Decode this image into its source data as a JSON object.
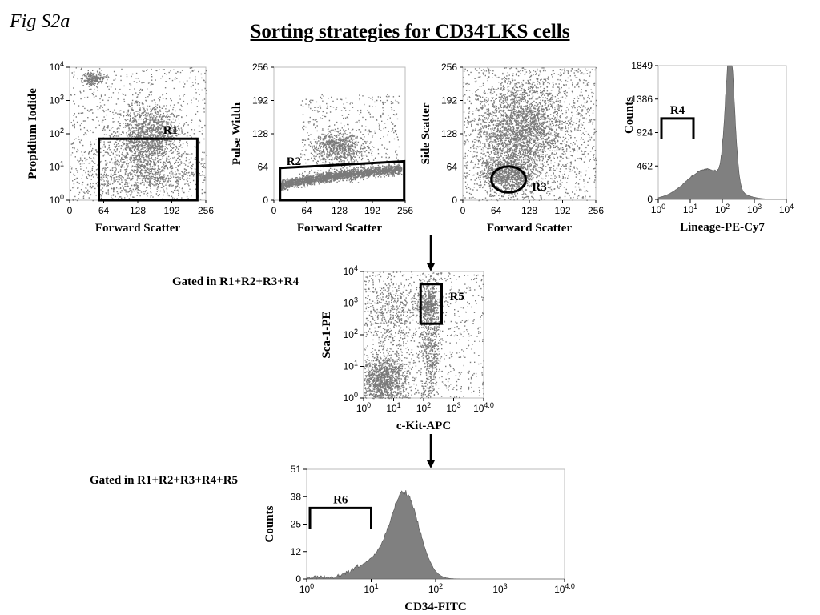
{
  "fig_label": "Fig S2a",
  "title_main": "Sorting strategies for CD34",
  "title_sup": "-",
  "title_rest": "LKS cells",
  "gate_notes": [
    "Gated in R1+R2+R3+R4",
    "Gated in R1+R2+R3+R4+R5"
  ],
  "chart_data": [
    {
      "type": "scatter",
      "id": "p1",
      "xlabel": "Forward Scatter",
      "ylabel": "Propidium Iodide",
      "x_ticks": [
        "0",
        "64",
        "128",
        "192",
        "256"
      ],
      "y_ticks": [
        "10^0",
        "10^1",
        "10^2",
        "10^3",
        "10^4"
      ],
      "xlim": [
        0,
        256
      ],
      "ylim_log10": [
        0,
        4
      ],
      "gate": {
        "name": "R1",
        "shape": "rectangle",
        "x": [
          55,
          240
        ],
        "y_log10": [
          0,
          1.85
        ]
      }
    },
    {
      "type": "scatter",
      "id": "p2",
      "xlabel": "Forward Scatter",
      "ylabel": "Pulse Width",
      "x_ticks": [
        "0",
        "64",
        "128",
        "192",
        "256"
      ],
      "y_ticks": [
        "0",
        "64",
        "128",
        "192",
        "256"
      ],
      "xlim": [
        0,
        256
      ],
      "ylim": [
        0,
        256
      ],
      "gate": {
        "name": "R2",
        "shape": "polygon",
        "points": [
          [
            12,
            0
          ],
          [
            254,
            0
          ],
          [
            254,
            75
          ],
          [
            12,
            62
          ]
        ]
      }
    },
    {
      "type": "scatter",
      "id": "p3",
      "xlabel": "Forward Scatter",
      "ylabel": "Side Scatter",
      "x_ticks": [
        "0",
        "64",
        "128",
        "192",
        "256"
      ],
      "y_ticks": [
        "0",
        "64",
        "128",
        "192",
        "256"
      ],
      "xlim": [
        0,
        256
      ],
      "ylim": [
        0,
        256
      ],
      "gate": {
        "name": "R3",
        "shape": "ellipse",
        "center": [
          88,
          40
        ],
        "radius": [
          33,
          25
        ]
      }
    },
    {
      "type": "area",
      "id": "p4",
      "xlabel": "Lineage-PE-Cy7",
      "ylabel": "Counts",
      "x_ticks": [
        "10^0",
        "10^1",
        "10^2",
        "10^3",
        "10^4"
      ],
      "y_ticks": [
        "0",
        "462",
        "924",
        "1386",
        "1849"
      ],
      "xlim_log10": [
        0,
        4
      ],
      "ylim": [
        0,
        1849
      ],
      "gate": {
        "name": "R4",
        "shape": "bracket",
        "x_log10": [
          0.1,
          1.1
        ],
        "y": 1120
      }
    },
    {
      "type": "scatter",
      "id": "p5",
      "xlabel": "c-Kit-APC",
      "ylabel": "Sca-1-PE",
      "x_ticks": [
        "10^0",
        "10^1",
        "10^2",
        "10^3",
        "10^4.0"
      ],
      "y_ticks": [
        "10^0",
        "10^1",
        "10^2",
        "10^3",
        "10^4"
      ],
      "xlim_log10": [
        0,
        4
      ],
      "ylim_log10": [
        0,
        4
      ],
      "gate": {
        "name": "R5",
        "shape": "rectangle",
        "x_log10": [
          1.9,
          2.6
        ],
        "y_log10": [
          2.35,
          3.6
        ]
      }
    },
    {
      "type": "area",
      "id": "p6",
      "xlabel": "CD34-FITC",
      "ylabel": "Counts",
      "x_ticks": [
        "10^0",
        "10^1",
        "10^2",
        "10^3",
        "10^4.0"
      ],
      "y_ticks": [
        "0",
        "12",
        "25",
        "38",
        "51"
      ],
      "xlim_log10": [
        0,
        4
      ],
      "ylim": [
        0,
        51
      ],
      "gate": {
        "name": "R6",
        "shape": "bracket",
        "x_log10": [
          0.05,
          1.0
        ],
        "y": 33
      }
    }
  ],
  "colors": {
    "dots": "#7a7a7a",
    "hist_fill": "#808080",
    "hist_stroke": "#555555",
    "frame": "#bbbbbb",
    "gate": "#000000"
  }
}
